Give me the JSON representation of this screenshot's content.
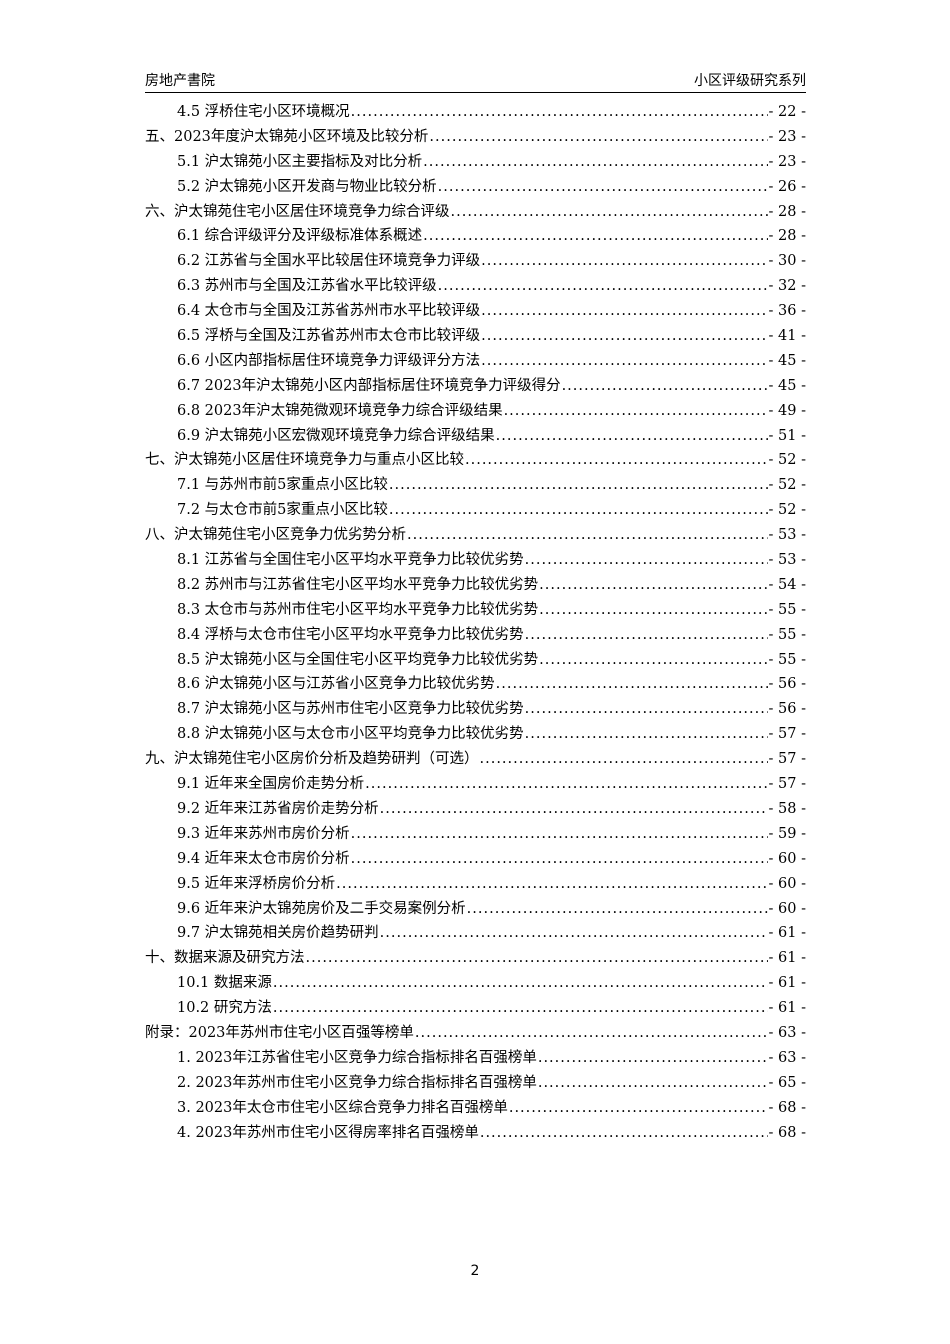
{
  "header": {
    "left": "房地产書院",
    "right": "小区评级研究系列"
  },
  "toc": [
    {
      "title": "4.5 浮桥住宅小区环境概况",
      "page": "- 22 -",
      "level": 2
    },
    {
      "title": "五、2023年度沪太锦苑小区环境及比较分析",
      "page": "- 23 -",
      "level": 1
    },
    {
      "title": "5.1 沪太锦苑小区主要指标及对比分析",
      "page": "- 23 -",
      "level": 2
    },
    {
      "title": "5.2 沪太锦苑小区开发商与物业比较分析",
      "page": "- 26 -",
      "level": 2
    },
    {
      "title": "六、沪太锦苑住宅小区居住环境竞争力综合评级",
      "page": "- 28 -",
      "level": 1
    },
    {
      "title": "6.1 综合评级评分及评级标准体系概述",
      "page": "- 28 -",
      "level": 2
    },
    {
      "title": "6.2 江苏省与全国水平比较居住环境竞争力评级",
      "page": "- 30 -",
      "level": 2
    },
    {
      "title": "6.3 苏州市与全国及江苏省水平比较评级",
      "page": "- 32 -",
      "level": 2
    },
    {
      "title": "6.4 太仓市与全国及江苏省苏州市水平比较评级",
      "page": "- 36 -",
      "level": 2
    },
    {
      "title": "6.5 浮桥与全国及江苏省苏州市太仓市比较评级",
      "page": "- 41 -",
      "level": 2
    },
    {
      "title": "6.6 小区内部指标居住环境竞争力评级评分方法",
      "page": "- 45 -",
      "level": 2
    },
    {
      "title": "6.7 2023年沪太锦苑小区内部指标居住环境竞争力评级得分",
      "page": "- 45 -",
      "level": 2
    },
    {
      "title": "6.8 2023年沪太锦苑微观环境竞争力综合评级结果",
      "page": "- 49 -",
      "level": 2
    },
    {
      "title": "6.9 沪太锦苑小区宏微观环境竞争力综合评级结果",
      "page": "- 51 -",
      "level": 2
    },
    {
      "title": "七、沪太锦苑小区居住环境竞争力与重点小区比较",
      "page": "- 52 -",
      "level": 1
    },
    {
      "title": "7.1 与苏州市前5家重点小区比较",
      "page": "- 52 -",
      "level": 2
    },
    {
      "title": "7.2 与太仓市前5家重点小区比较",
      "page": "- 52 -",
      "level": 2
    },
    {
      "title": "八、沪太锦苑住宅小区竞争力优劣势分析",
      "page": "- 53 -",
      "level": 1
    },
    {
      "title": "8.1 江苏省与全国住宅小区平均水平竞争力比较优劣势",
      "page": "- 53 -",
      "level": 2
    },
    {
      "title": "8.2 苏州市与江苏省住宅小区平均水平竞争力比较优劣势",
      "page": "- 54 -",
      "level": 2
    },
    {
      "title": "8.3 太仓市与苏州市住宅小区平均水平竞争力比较优劣势",
      "page": "- 55 -",
      "level": 2
    },
    {
      "title": "8.4 浮桥与太仓市住宅小区平均水平竞争力比较优劣势",
      "page": "- 55 -",
      "level": 2
    },
    {
      "title": "8.5 沪太锦苑小区与全国住宅小区平均竞争力比较优劣势",
      "page": "- 55 -",
      "level": 2
    },
    {
      "title": "8.6 沪太锦苑小区与江苏省小区竞争力比较优劣势",
      "page": "- 56 -",
      "level": 2
    },
    {
      "title": "8.7 沪太锦苑小区与苏州市住宅小区竞争力比较优劣势",
      "page": "- 56 -",
      "level": 2
    },
    {
      "title": "8.8 沪太锦苑小区与太仓市小区平均竞争力比较优劣势",
      "page": "- 57 -",
      "level": 2
    },
    {
      "title": "九、沪太锦苑住宅小区房价分析及趋势研判（可选）",
      "page": "- 57 -",
      "level": 1
    },
    {
      "title": "9.1 近年来全国房价走势分析",
      "page": "- 57 -",
      "level": 2
    },
    {
      "title": "9.2 近年来江苏省房价走势分析",
      "page": "- 58 -",
      "level": 2
    },
    {
      "title": "9.3 近年来苏州市房价分析",
      "page": "- 59 -",
      "level": 2
    },
    {
      "title": "9.4 近年来太仓市房价分析",
      "page": "- 60 -",
      "level": 2
    },
    {
      "title": "9.5 近年来浮桥房价分析",
      "page": "- 60 -",
      "level": 2
    },
    {
      "title": "9.6 近年来沪太锦苑房价及二手交易案例分析",
      "page": "- 60 -",
      "level": 2
    },
    {
      "title": "9.7 沪太锦苑相关房价趋势研判",
      "page": "- 61 -",
      "level": 2
    },
    {
      "title": "十、数据来源及研究方法",
      "page": "- 61 -",
      "level": 1
    },
    {
      "title": "10.1 数据来源",
      "page": "- 61 -",
      "level": 2
    },
    {
      "title": "10.2 研究方法",
      "page": "- 61 -",
      "level": 2
    },
    {
      "title": "附录：2023年苏州市住宅小区百强等榜单",
      "page": "- 63 -",
      "level": 1
    },
    {
      "title": "1. 2023年江苏省住宅小区竞争力综合指标排名百强榜单",
      "page": "- 63 -",
      "level": 2
    },
    {
      "title": "2. 2023年苏州市住宅小区竞争力综合指标排名百强榜单",
      "page": "- 65 -",
      "level": 2
    },
    {
      "title": "3. 2023年太仓市住宅小区综合竞争力排名百强榜单",
      "page": "- 68 -",
      "level": 2
    },
    {
      "title": "4. 2023年苏州市住宅小区得房率排名百强榜单",
      "page": "- 68 -",
      "level": 2
    }
  ],
  "footer": {
    "page_number": "2"
  }
}
